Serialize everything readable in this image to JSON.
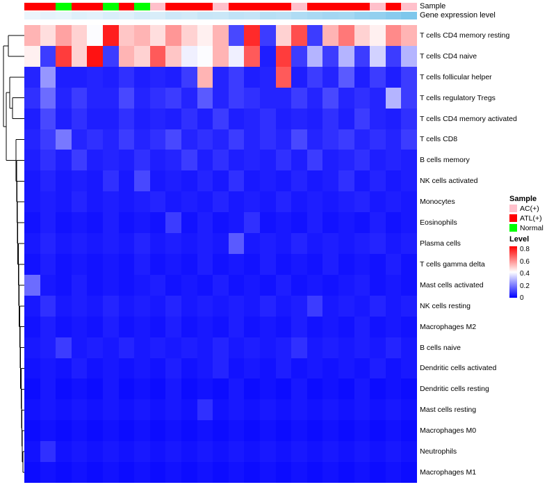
{
  "annotations": {
    "sample_label": "Sample",
    "expr_label": "Gene expression level",
    "sample_values": [
      "ATL(+)",
      "ATL(+)",
      "Normal",
      "ATL(+)",
      "ATL(+)",
      "Normal",
      "ATL(+)",
      "Normal",
      "AC(+)",
      "ATL(+)",
      "ATL(+)",
      "ATL(+)",
      "AC(+)",
      "ATL(+)",
      "ATL(+)",
      "ATL(+)",
      "ATL(+)",
      "AC(+)",
      "ATL(+)",
      "ATL(+)",
      "ATL(+)",
      "ATL(+)",
      "AC(+)",
      "ATL(+)",
      "AC(+)"
    ],
    "expr_values": [
      0.05,
      0.1,
      0.08,
      0.15,
      0.12,
      0.18,
      0.15,
      0.22,
      0.2,
      0.28,
      0.25,
      0.32,
      0.3,
      0.38,
      0.35,
      0.45,
      0.42,
      0.5,
      0.55,
      0.6,
      0.58,
      0.68,
      0.72,
      0.8,
      0.88
    ],
    "expr_scale_low": "#F2F8FD",
    "expr_scale_high": "#6EC0EA"
  },
  "chart_data": {
    "type": "heatmap",
    "title": "",
    "columns": 25,
    "rows": [
      "T cells CD4 memory resting",
      "T cells CD4 naive",
      "T cells follicular helper",
      "T cells regulatory Tregs",
      "T cells CD4 memory activated",
      "T cells CD8",
      "B cells memory",
      "NK cells activated",
      "Monocytes",
      "Eosinophils",
      "Plasma cells",
      "T cells gamma delta",
      "Mast cells activated",
      "NK cells resting",
      "Macrophages M2",
      "B cells naive",
      "Dendritic cells activated",
      "Dendritic cells resting",
      "Mast cells resting",
      "Macrophages M0",
      "Neutrophils",
      "Macrophages M1"
    ],
    "value_range": [
      0,
      0.85
    ],
    "colormap": {
      "low": "#0000FF",
      "mid": "#FFFFFF",
      "high": "#FF0000"
    },
    "values": [
      [
        0.55,
        0.48,
        0.58,
        0.5,
        0.42,
        0.8,
        0.52,
        0.55,
        0.48,
        0.6,
        0.5,
        0.45,
        0.55,
        0.12,
        0.78,
        0.1,
        0.5,
        0.72,
        0.1,
        0.55,
        0.65,
        0.5,
        0.45,
        0.62,
        0.55
      ],
      [
        0.45,
        0.1,
        0.75,
        0.5,
        0.82,
        0.1,
        0.55,
        0.5,
        0.7,
        0.52,
        0.4,
        0.42,
        0.55,
        0.4,
        0.7,
        0.05,
        0.75,
        0.1,
        0.3,
        0.1,
        0.3,
        0.1,
        0.35,
        0.1,
        0.3
      ],
      [
        0.06,
        0.25,
        0.05,
        0.05,
        0.06,
        0.05,
        0.08,
        0.05,
        0.06,
        0.05,
        0.1,
        0.55,
        0.06,
        0.1,
        0.05,
        0.06,
        0.7,
        0.05,
        0.1,
        0.06,
        0.15,
        0.05,
        0.1,
        0.05,
        0.1
      ],
      [
        0.08,
        0.18,
        0.06,
        0.1,
        0.06,
        0.06,
        0.12,
        0.06,
        0.08,
        0.1,
        0.06,
        0.15,
        0.06,
        0.1,
        0.08,
        0.06,
        0.06,
        0.1,
        0.06,
        0.12,
        0.06,
        0.08,
        0.06,
        0.3,
        0.1
      ],
      [
        0.05,
        0.12,
        0.05,
        0.08,
        0.05,
        0.05,
        0.08,
        0.05,
        0.06,
        0.05,
        0.08,
        0.05,
        0.1,
        0.05,
        0.06,
        0.08,
        0.05,
        0.06,
        0.05,
        0.08,
        0.05,
        0.1,
        0.06,
        0.05,
        0.08
      ],
      [
        0.06,
        0.1,
        0.2,
        0.06,
        0.08,
        0.06,
        0.1,
        0.06,
        0.08,
        0.12,
        0.06,
        0.08,
        0.06,
        0.1,
        0.06,
        0.08,
        0.06,
        0.12,
        0.06,
        0.08,
        0.1,
        0.06,
        0.08,
        0.06,
        0.1
      ],
      [
        0.05,
        0.08,
        0.05,
        0.1,
        0.05,
        0.06,
        0.05,
        0.08,
        0.05,
        0.06,
        0.1,
        0.05,
        0.08,
        0.05,
        0.06,
        0.05,
        0.08,
        0.05,
        0.1,
        0.05,
        0.06,
        0.08,
        0.05,
        0.06,
        0.05
      ],
      [
        0.04,
        0.06,
        0.04,
        0.05,
        0.04,
        0.08,
        0.04,
        0.12,
        0.04,
        0.05,
        0.04,
        0.06,
        0.04,
        0.08,
        0.04,
        0.05,
        0.04,
        0.06,
        0.04,
        0.05,
        0.08,
        0.04,
        0.06,
        0.04,
        0.05
      ],
      [
        0.04,
        0.05,
        0.04,
        0.06,
        0.04,
        0.05,
        0.04,
        0.05,
        0.06,
        0.04,
        0.05,
        0.04,
        0.06,
        0.04,
        0.05,
        0.04,
        0.06,
        0.04,
        0.05,
        0.04,
        0.05,
        0.06,
        0.04,
        0.05,
        0.04
      ],
      [
        0.03,
        0.05,
        0.03,
        0.04,
        0.03,
        0.05,
        0.03,
        0.04,
        0.03,
        0.1,
        0.03,
        0.05,
        0.03,
        0.04,
        0.08,
        0.03,
        0.04,
        0.03,
        0.05,
        0.03,
        0.04,
        0.03,
        0.05,
        0.03,
        0.04
      ],
      [
        0.04,
        0.06,
        0.04,
        0.05,
        0.04,
        0.05,
        0.04,
        0.06,
        0.04,
        0.05,
        0.04,
        0.05,
        0.04,
        0.15,
        0.04,
        0.05,
        0.04,
        0.06,
        0.04,
        0.05,
        0.04,
        0.05,
        0.06,
        0.04,
        0.05
      ],
      [
        0.03,
        0.05,
        0.03,
        0.04,
        0.03,
        0.04,
        0.03,
        0.05,
        0.03,
        0.04,
        0.03,
        0.05,
        0.03,
        0.04,
        0.03,
        0.05,
        0.03,
        0.04,
        0.03,
        0.05,
        0.03,
        0.04,
        0.03,
        0.05,
        0.03
      ],
      [
        0.18,
        0.04,
        0.03,
        0.05,
        0.03,
        0.04,
        0.03,
        0.04,
        0.05,
        0.03,
        0.04,
        0.03,
        0.05,
        0.03,
        0.04,
        0.03,
        0.05,
        0.03,
        0.04,
        0.03,
        0.04,
        0.05,
        0.03,
        0.04,
        0.03
      ],
      [
        0.04,
        0.08,
        0.04,
        0.05,
        0.04,
        0.06,
        0.04,
        0.05,
        0.04,
        0.06,
        0.04,
        0.05,
        0.04,
        0.05,
        0.04,
        0.06,
        0.04,
        0.05,
        0.1,
        0.04,
        0.05,
        0.04,
        0.06,
        0.04,
        0.05
      ],
      [
        0.03,
        0.05,
        0.03,
        0.04,
        0.03,
        0.05,
        0.03,
        0.04,
        0.03,
        0.05,
        0.03,
        0.04,
        0.03,
        0.05,
        0.03,
        0.04,
        0.03,
        0.05,
        0.03,
        0.04,
        0.03,
        0.05,
        0.03,
        0.04,
        0.03
      ],
      [
        0.04,
        0.05,
        0.1,
        0.04,
        0.05,
        0.04,
        0.06,
        0.04,
        0.05,
        0.04,
        0.05,
        0.04,
        0.06,
        0.04,
        0.05,
        0.04,
        0.05,
        0.08,
        0.04,
        0.05,
        0.04,
        0.05,
        0.04,
        0.06,
        0.04
      ],
      [
        0.03,
        0.04,
        0.03,
        0.05,
        0.03,
        0.04,
        0.03,
        0.04,
        0.03,
        0.05,
        0.03,
        0.04,
        0.06,
        0.03,
        0.04,
        0.03,
        0.05,
        0.03,
        0.04,
        0.03,
        0.04,
        0.03,
        0.05,
        0.03,
        0.04
      ],
      [
        0.02,
        0.04,
        0.02,
        0.03,
        0.02,
        0.04,
        0.02,
        0.03,
        0.02,
        0.04,
        0.02,
        0.03,
        0.02,
        0.04,
        0.02,
        0.03,
        0.02,
        0.04,
        0.02,
        0.03,
        0.02,
        0.04,
        0.02,
        0.03,
        0.02
      ],
      [
        0.03,
        0.04,
        0.03,
        0.04,
        0.03,
        0.04,
        0.03,
        0.04,
        0.03,
        0.04,
        0.03,
        0.08,
        0.03,
        0.04,
        0.03,
        0.04,
        0.03,
        0.04,
        0.03,
        0.04,
        0.03,
        0.04,
        0.03,
        0.04,
        0.03
      ],
      [
        0.02,
        0.03,
        0.02,
        0.03,
        0.02,
        0.03,
        0.02,
        0.03,
        0.02,
        0.03,
        0.02,
        0.03,
        0.02,
        0.03,
        0.02,
        0.03,
        0.02,
        0.03,
        0.02,
        0.03,
        0.02,
        0.03,
        0.02,
        0.03,
        0.02
      ],
      [
        0.03,
        0.08,
        0.03,
        0.04,
        0.03,
        0.04,
        0.03,
        0.04,
        0.03,
        0.04,
        0.03,
        0.04,
        0.03,
        0.04,
        0.03,
        0.04,
        0.03,
        0.04,
        0.03,
        0.04,
        0.03,
        0.04,
        0.03,
        0.04,
        0.03
      ],
      [
        0.02,
        0.03,
        0.02,
        0.03,
        0.02,
        0.03,
        0.02,
        0.03,
        0.02,
        0.03,
        0.02,
        0.03,
        0.02,
        0.03,
        0.02,
        0.03,
        0.02,
        0.03,
        0.02,
        0.03,
        0.02,
        0.03,
        0.02,
        0.03,
        0.02
      ]
    ]
  },
  "legends": {
    "sample": {
      "title": "Sample",
      "entries": [
        {
          "label": "AC(+)",
          "color": "#FFC0CB"
        },
        {
          "label": "ATL(+)",
          "color": "#FF0000"
        },
        {
          "label": "Normal",
          "color": "#00FF00"
        }
      ]
    },
    "level": {
      "title": "Level",
      "ticks": [
        "0.8",
        "0.6",
        "0.4",
        "0.2",
        "0"
      ]
    }
  }
}
